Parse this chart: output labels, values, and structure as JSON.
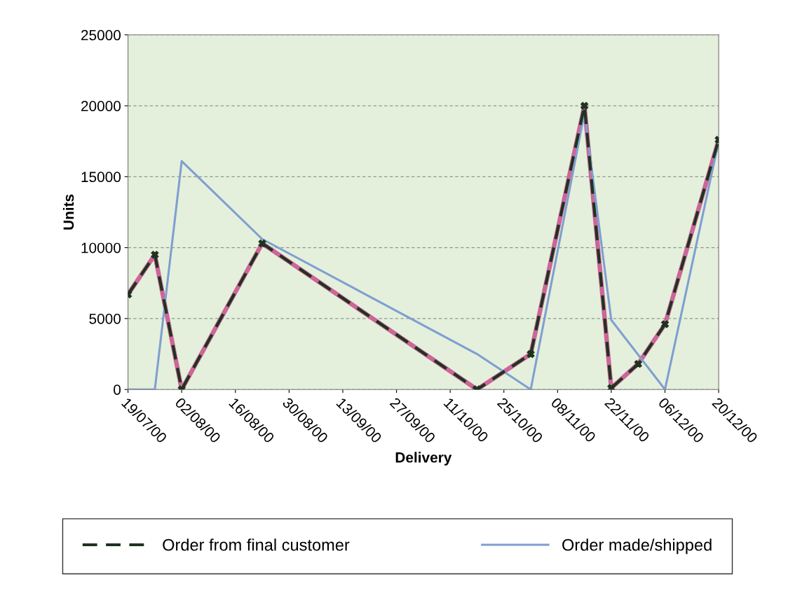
{
  "chart_data": {
    "type": "line",
    "xlabel": "Delivery",
    "ylabel": "Units",
    "ylim": [
      0,
      25000
    ],
    "yticks": [
      0,
      5000,
      10000,
      15000,
      20000,
      25000
    ],
    "xlim": [
      "2000-07-19",
      "2000-12-20"
    ],
    "xticks": [
      {
        "value": "2000-07-19",
        "label": "19/07/00"
      },
      {
        "value": "2000-08-02",
        "label": "02/08/00"
      },
      {
        "value": "2000-08-16",
        "label": "16/08/00"
      },
      {
        "value": "2000-08-30",
        "label": "30/08/00"
      },
      {
        "value": "2000-09-13",
        "label": "13/09/00"
      },
      {
        "value": "2000-09-27",
        "label": "27/09/00"
      },
      {
        "value": "2000-10-11",
        "label": "11/10/00"
      },
      {
        "value": "2000-10-25",
        "label": "25/10/00"
      },
      {
        "value": "2000-11-08",
        "label": "08/11/00"
      },
      {
        "value": "2000-11-22",
        "label": "22/11/00"
      },
      {
        "value": "2000-12-06",
        "label": "06/12/00"
      },
      {
        "value": "2000-12-20",
        "label": "20/12/00"
      }
    ],
    "grid": "y",
    "legend": "bottom",
    "series": [
      {
        "color": "#cc6699",
        "line_style": "solid",
        "marker": "none",
        "x": [
          "2000-07-19",
          "2000-07-26",
          "2000-08-02",
          "2000-08-23",
          "2000-10-18",
          "2000-11-01",
          "2000-11-15",
          "2000-11-22",
          "2000-11-29",
          "2000-12-06",
          "2000-12-20"
        ],
        "values": [
          6700,
          9500,
          0,
          10300,
          0,
          2500,
          20000,
          100,
          1800,
          4600,
          17600
        ]
      },
      {
        "name": "Order from final customer",
        "color": "#1f3320",
        "line_style": "dashed",
        "marker": "cross",
        "x": [
          "2000-07-19",
          "2000-07-26",
          "2000-08-02",
          "2000-08-23",
          "2000-10-18",
          "2000-11-01",
          "2000-11-15",
          "2000-11-22",
          "2000-11-29",
          "2000-12-06",
          "2000-12-20"
        ],
        "values": [
          6700,
          9500,
          0,
          10300,
          0,
          2500,
          20000,
          100,
          1800,
          4600,
          17600
        ]
      },
      {
        "name": "Order made/shipped",
        "color": "#7f9fd0",
        "line_style": "solid",
        "marker": "none",
        "x": [
          "2000-07-19",
          "2000-07-26",
          "2000-08-02",
          "2000-08-23",
          "2000-10-18",
          "2000-11-01",
          "2000-11-15",
          "2000-11-22",
          "2000-12-06",
          "2000-12-20"
        ],
        "values": [
          0,
          0,
          16100,
          10600,
          2500,
          0,
          19500,
          4900,
          0,
          17500
        ]
      }
    ]
  }
}
